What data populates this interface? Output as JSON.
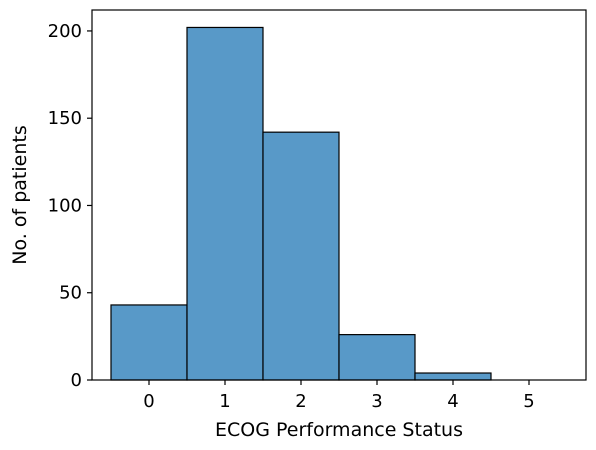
{
  "chart_data": {
    "type": "bar",
    "title": "",
    "xlabel": "ECOG Performance Status",
    "ylabel": "No. of patients",
    "categories": [
      "0",
      "1",
      "2",
      "3",
      "4",
      "5"
    ],
    "values": [
      43,
      202,
      142,
      26,
      4,
      0
    ],
    "xlim": [
      -0.75,
      5.75
    ],
    "ylim": [
      0,
      212
    ],
    "xticks": [
      "0",
      "1",
      "2",
      "3",
      "4",
      "5"
    ],
    "yticks": [
      0,
      50,
      100,
      150,
      200
    ],
    "bar_color": "#5899c8",
    "edge_color": "#000000",
    "grid": false,
    "legend": "none"
  }
}
